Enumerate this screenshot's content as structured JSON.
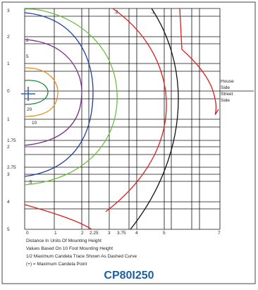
{
  "diagram": {
    "title": "CP80I250",
    "y_labels": [
      "3",
      "2",
      "1",
      "0",
      "1",
      "1.75",
      "2",
      "2.75",
      "3",
      "4",
      "5"
    ],
    "x_labels": [
      "0",
      "1",
      "2",
      "2.25",
      "3",
      "3.75",
      "4",
      "5",
      "7"
    ],
    "side_labels": [
      "House",
      "Side",
      "Street",
      "Side"
    ],
    "contour_labels": [
      ".2",
      ".1",
      "2",
      "5",
      "20",
      "10",
      ".5"
    ],
    "notes": [
      "Distance In Units Of Mounting Height",
      "Values Based On 10 Foot Mounting Height",
      "1/2 Maximum Candela Trace Shown As Dashed Curve",
      "(+) = Maximum Candela Point"
    ]
  }
}
